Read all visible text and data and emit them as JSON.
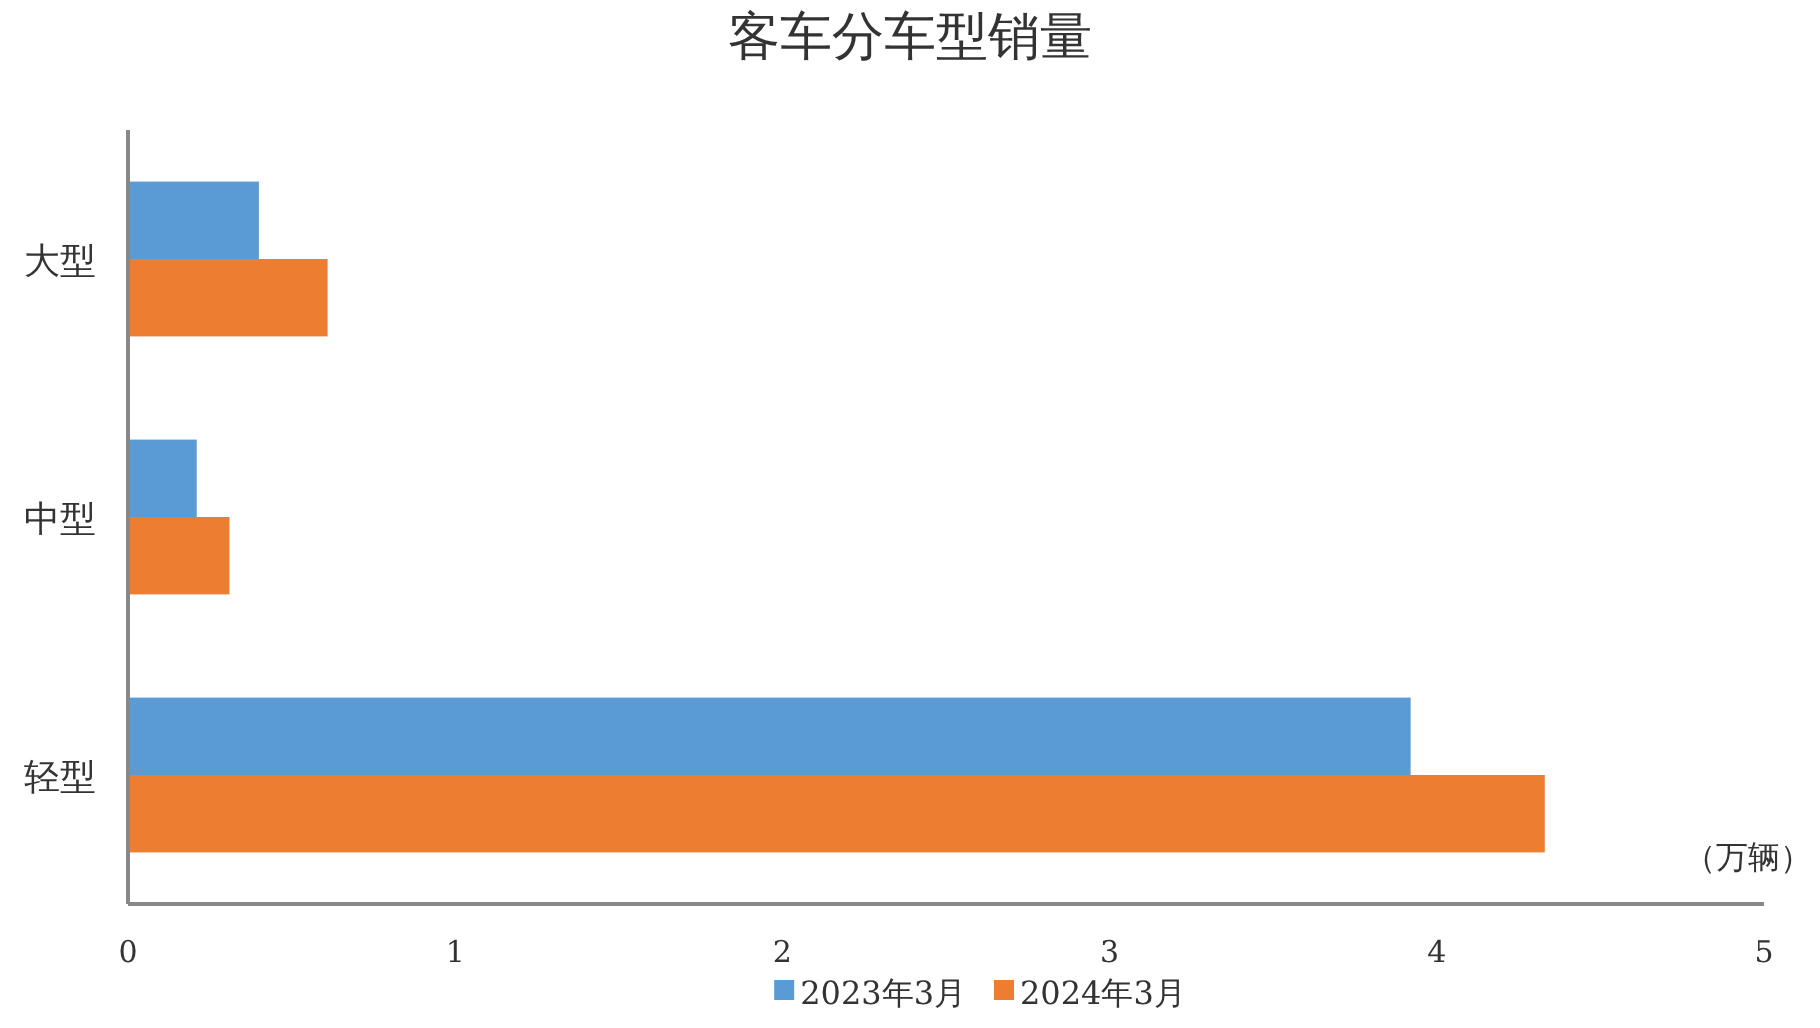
{
  "chart_data": {
    "type": "bar",
    "orientation": "horizontal",
    "title": "客车分车型销量",
    "xlabel": "（万辆）",
    "categories": [
      "大型",
      "中型",
      "轻型"
    ],
    "series": [
      {
        "name": "2023年3月",
        "color": "#5b9bd5",
        "values": [
          0.4,
          0.21,
          3.92
        ]
      },
      {
        "name": "2024年3月",
        "color": "#ed7d31",
        "values": [
          0.61,
          0.31,
          4.33
        ]
      }
    ],
    "xlim": [
      0,
      5
    ],
    "xticks": [
      0,
      1,
      2,
      3,
      4,
      5
    ],
    "grid": false,
    "legend": "bottom"
  }
}
